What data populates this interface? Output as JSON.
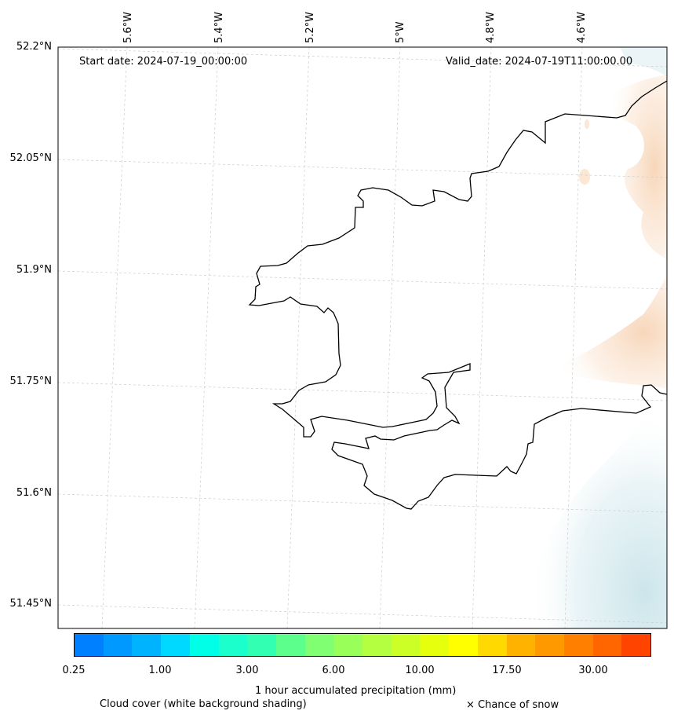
{
  "map": {
    "start_date": "Start date: 2024-07-19_00:00:00",
    "valid_date": "Valid_date: 2024-07-19T11:00:00.00",
    "lat_labels": [
      "52.2°N",
      "52.05°N",
      "51.9°N",
      "51.75°N",
      "51.6°N",
      "51.45°N"
    ],
    "lon_labels": [
      "5.6°W",
      "5.4°W",
      "5.2°W",
      "5°W",
      "4.8°W",
      "4.6°W"
    ],
    "coastline_color": "#000000",
    "gridline_color": "#cccccc",
    "cloud_shading_color": "#cfe6ec",
    "precip_shading_color": "#fbe3cf"
  },
  "colorbar": {
    "colors": [
      "#0080ff",
      "#0099ff",
      "#00b3ff",
      "#00d9ff",
      "#00ffe6",
      "#1affcc",
      "#33ffb3",
      "#5cff8c",
      "#80ff73",
      "#99ff59",
      "#b3ff40",
      "#ccff26",
      "#e6ff0d",
      "#ffff00",
      "#ffd900",
      "#ffb300",
      "#ff9900",
      "#ff8000",
      "#ff6600",
      "#ff4400"
    ],
    "tick_labels": [
      "0.25",
      "1.00",
      "3.00",
      "6.00",
      "10.00",
      "17.50",
      "30.00"
    ],
    "title": "1 hour accumulated precipitation (mm)"
  },
  "legend": {
    "cloud": "Cloud cover (white background shading)",
    "snow": "× Chance of snow"
  }
}
